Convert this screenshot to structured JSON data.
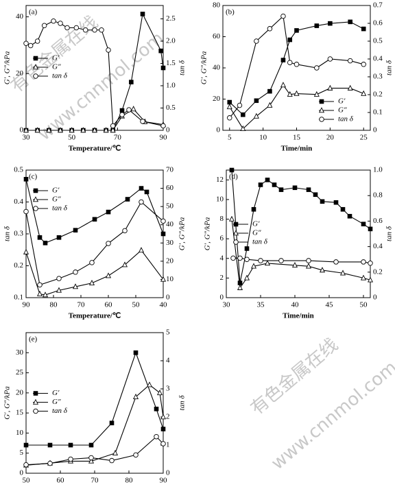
{
  "chart_data": [
    {
      "type": "line",
      "panel_label": "(a)",
      "xlabel": "Temperature/℃",
      "ylabel": "G′, G″/kPa",
      "y2label": "tan δ",
      "legend": "center left",
      "xlim": [
        30,
        90
      ],
      "xticks": [
        30,
        50,
        70,
        90
      ],
      "ylim": [
        0,
        44
      ],
      "yticks": [
        0,
        20,
        40
      ],
      "y2lim": [
        0,
        2.8
      ],
      "y2ticks": [
        0,
        0.5,
        {
          "value": 1,
          "label": "1.0"
        },
        1.5,
        {
          "value": 2,
          "label": "2.0"
        },
        2.5
      ],
      "series": [
        {
          "name": "G′",
          "marker": "square",
          "color": "#000000",
          "axis": "y",
          "x": [
            30,
            35,
            40,
            45,
            50,
            55,
            60,
            65,
            68,
            72,
            76,
            81,
            89,
            90
          ],
          "values": [
            0,
            0,
            0,
            0,
            0,
            0,
            0,
            0,
            0,
            7,
            17,
            41,
            28,
            22
          ]
        },
        {
          "name": "G″",
          "marker": "triangle",
          "color": "#000000",
          "axis": "y",
          "x": [
            30,
            35,
            40,
            45,
            50,
            55,
            60,
            65,
            68,
            72,
            77,
            82,
            90
          ],
          "values": [
            0,
            0,
            0,
            0,
            0,
            0,
            0,
            0,
            0,
            5,
            7.5,
            3,
            2
          ]
        },
        {
          "name": "tan δ",
          "marker": "circle",
          "color": "#000000",
          "axis": "y2",
          "x": [
            30,
            32,
            35,
            38,
            42,
            45,
            48,
            52,
            56,
            60,
            63,
            66,
            68,
            72,
            75,
            81,
            90
          ],
          "values": [
            1.95,
            1.9,
            2.0,
            2.35,
            2.45,
            2.4,
            2.3,
            2.3,
            2.25,
            2.25,
            2.25,
            1.8,
            0.1,
            0.35,
            0.46,
            0.2,
            0.1
          ]
        }
      ]
    },
    {
      "type": "line",
      "panel_label": "(b)",
      "xlabel": "Time/min",
      "ylabel": "G′, G″/kPa",
      "y2label": "tan δ",
      "legend": "lower right",
      "xlim": [
        4,
        26
      ],
      "xticks": [
        5,
        10,
        15,
        20,
        25
      ],
      "ylim": [
        0,
        80
      ],
      "yticks": [
        0,
        20,
        40,
        60,
        80
      ],
      "y2lim": [
        0,
        0.7
      ],
      "y2ticks": [
        0,
        0.1,
        0.2,
        0.3,
        0.4,
        0.5,
        0.6,
        0.7
      ],
      "series": [
        {
          "name": "G′",
          "marker": "square",
          "color": "#000000",
          "axis": "y",
          "x": [
            5,
            7,
            9,
            11,
            13,
            14,
            15,
            18,
            20,
            23,
            25
          ],
          "values": [
            18,
            10,
            19,
            25,
            45,
            58,
            64,
            67,
            68.5,
            69.5,
            65
          ]
        },
        {
          "name": "G″",
          "marker": "triangle",
          "color": "#000000",
          "axis": "y",
          "x": [
            5,
            7,
            9,
            11,
            13,
            14,
            15,
            18,
            20,
            23,
            25
          ],
          "values": [
            15,
            1,
            9,
            16,
            29,
            23,
            23.5,
            23,
            27,
            27,
            23.5
          ]
        },
        {
          "name": "tan δ",
          "marker": "circle",
          "color": "#000000",
          "axis": "y2",
          "x": [
            5,
            6.5,
            9,
            11,
            13,
            14,
            15,
            18,
            20,
            23,
            25
          ],
          "values": [
            0.07,
            0.14,
            0.5,
            0.57,
            0.64,
            0.38,
            0.37,
            0.35,
            0.4,
            0.39,
            0.37
          ]
        }
      ]
    },
    {
      "type": "line",
      "panel_label": "(c)",
      "xlabel": "Temperature/℃",
      "ylabel": "tan δ",
      "y2label": "G′, G″/kPa",
      "legend": "upper left",
      "xlim": [
        90,
        40
      ],
      "xticks": [
        90,
        80,
        70,
        60,
        50,
        40
      ],
      "ylim": [
        0.1,
        0.5
      ],
      "yticks": [
        0.1,
        0.2,
        0.3,
        0.4,
        0.5
      ],
      "y2lim": [
        0,
        70
      ],
      "y2ticks": [
        0,
        10,
        20,
        30,
        40,
        50,
        60,
        70
      ],
      "series": [
        {
          "name": "G′",
          "marker": "square",
          "color": "#000000",
          "axis": "y2",
          "x": [
            90,
            85,
            83,
            78,
            72,
            65,
            60,
            53,
            48,
            46,
            40
          ],
          "values": [
            65,
            33,
            30,
            33,
            37,
            43,
            47,
            54,
            60,
            58,
            35
          ]
        },
        {
          "name": "G″",
          "marker": "triangle",
          "color": "#000000",
          "axis": "y2",
          "x": [
            90,
            85,
            83,
            78,
            72,
            66,
            60,
            54,
            48,
            40
          ],
          "values": [
            25,
            2,
            1.5,
            4,
            6,
            8,
            12,
            18,
            26,
            10
          ]
        },
        {
          "name": "tan δ",
          "marker": "circle",
          "color": "#000000",
          "axis": "y",
          "x": [
            90,
            85,
            78,
            72,
            66,
            60,
            54,
            48,
            40
          ],
          "values": [
            0.37,
            0.14,
            0.16,
            0.18,
            0.21,
            0.27,
            0.31,
            0.4,
            0.34
          ]
        }
      ]
    },
    {
      "type": "line",
      "panel_label": "(d)",
      "xlabel": "Time/min",
      "ylabel": "G′, G″/kPa",
      "y2label": "tan δ",
      "legend": "center left",
      "xlim": [
        30,
        51
      ],
      "xticks": [
        30,
        35,
        40,
        45,
        50
      ],
      "ylim": [
        0,
        13
      ],
      "yticks": [
        0,
        2,
        4,
        6,
        8,
        10,
        12
      ],
      "y2lim": [
        0,
        1
      ],
      "y2ticks": [
        0,
        0.2,
        0.4,
        0.6,
        0.8,
        {
          "value": 1,
          "label": "1.0"
        }
      ],
      "series": [
        {
          "name": "G′",
          "marker": "square",
          "color": "#000000",
          "axis": "y",
          "x": [
            30.8,
            32,
            33,
            34,
            35,
            36,
            37,
            38,
            40,
            42,
            43,
            44,
            46,
            47,
            48,
            50,
            51
          ],
          "values": [
            13,
            1.5,
            5,
            9,
            11.5,
            12,
            11.5,
            11,
            11.2,
            11,
            10.5,
            9.8,
            9.7,
            9,
            8.3,
            7.5,
            7
          ]
        },
        {
          "name": "G″",
          "marker": "triangle",
          "color": "#000000",
          "axis": "y",
          "x": [
            30.8,
            32,
            33,
            34,
            36,
            40,
            42,
            44,
            47,
            50,
            51
          ],
          "values": [
            8,
            1,
            2,
            3.2,
            3.5,
            3.3,
            3.2,
            2.8,
            2.5,
            2,
            1.8
          ]
        },
        {
          "name": "tan δ",
          "marker": "circle",
          "color": "#000000",
          "axis": "y2",
          "x": [
            31,
            32,
            33,
            35,
            38,
            42,
            46,
            50,
            51
          ],
          "values": [
            0.31,
            0.31,
            0.3,
            0.29,
            0.29,
            0.29,
            0.28,
            0.28,
            0.27
          ]
        }
      ]
    },
    {
      "type": "line",
      "panel_label": "(e)",
      "xlabel": "Temperature/℃",
      "ylabel": "G′, G″/kPa",
      "y2label": "tan δ",
      "legend": "center left",
      "xlim": [
        50,
        90
      ],
      "xticks": [
        50,
        60,
        70,
        80,
        90
      ],
      "ylim": [
        0,
        35
      ],
      "yticks": [
        0,
        5,
        10,
        15,
        20,
        25,
        30
      ],
      "y2lim": [
        0,
        5
      ],
      "y2ticks": [
        0,
        1,
        2,
        3,
        4,
        5
      ],
      "series": [
        {
          "name": "G′",
          "marker": "square",
          "color": "#000000",
          "axis": "y",
          "x": [
            50,
            57,
            63,
            69,
            75,
            82,
            88,
            90
          ],
          "values": [
            7,
            7,
            7,
            7,
            12.5,
            30,
            16,
            11
          ]
        },
        {
          "name": "G″",
          "marker": "triangle",
          "color": "#000000",
          "axis": "y",
          "x": [
            50,
            57,
            63,
            69,
            76,
            82,
            86,
            89,
            90
          ],
          "values": [
            2,
            2.5,
            3,
            3,
            5,
            19,
            22,
            20,
            14
          ]
        },
        {
          "name": "tan δ",
          "marker": "circle",
          "color": "#000000",
          "axis": "y2",
          "x": [
            50,
            57,
            63,
            69,
            75,
            82,
            88,
            90
          ],
          "values": [
            0.3,
            0.35,
            0.5,
            0.55,
            0.45,
            0.65,
            1.3,
            1.05
          ]
        }
      ]
    }
  ],
  "watermark": {
    "cn": "有色金属在线",
    "url": "www.cnnmol.com"
  }
}
